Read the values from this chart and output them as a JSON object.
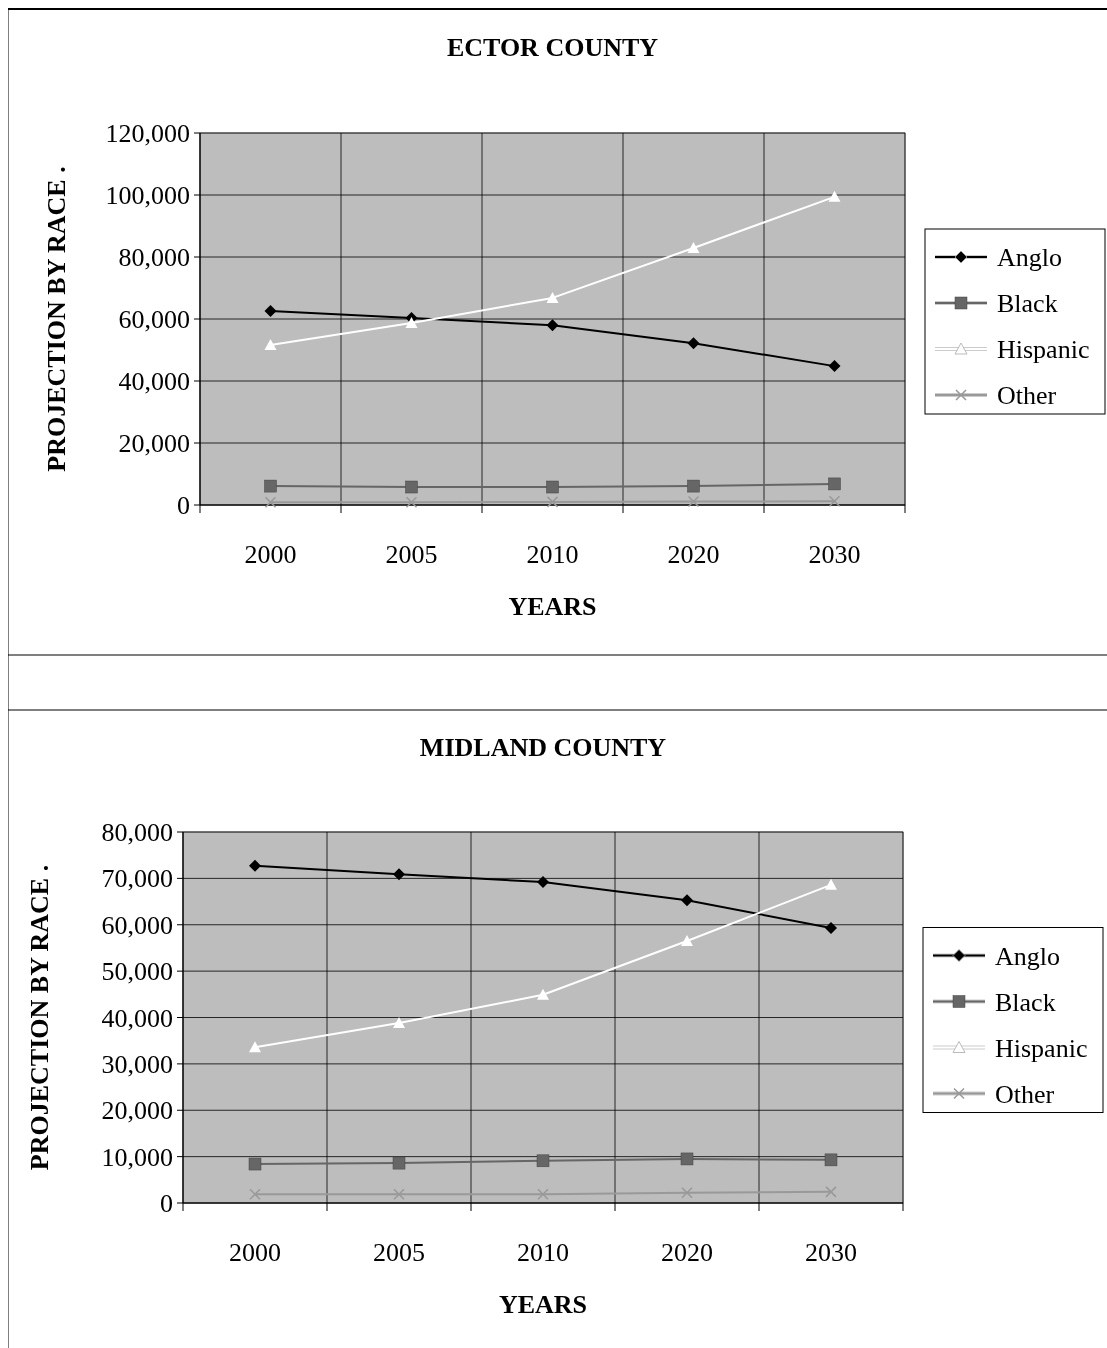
{
  "chart_data": [
    {
      "type": "line",
      "title": "ECTOR COUNTY",
      "xlabel": "YEARS",
      "ylabel": "PROJECTION BY RACE .",
      "categories": [
        "2000",
        "2005",
        "2010",
        "2020",
        "2030"
      ],
      "ylim": [
        0,
        120000
      ],
      "yticks": [
        {
          "value": 0,
          "label": "0"
        },
        {
          "value": 20000,
          "label": "20,000"
        },
        {
          "value": 40000,
          "label": "40,000"
        },
        {
          "value": 60000,
          "label": "60,000"
        },
        {
          "value": 80000,
          "label": "80,000"
        },
        {
          "value": 100000,
          "label": "100,000"
        },
        {
          "value": 120000,
          "label": "120,000"
        }
      ],
      "grid": true,
      "legend": "right",
      "series": [
        {
          "name": "Anglo",
          "color": "#000000",
          "marker": "diamond",
          "values": [
            62600,
            60300,
            58000,
            52200,
            44800
          ]
        },
        {
          "name": "Black",
          "color": "#666666",
          "marker": "square",
          "values": [
            6100,
            5800,
            5800,
            6100,
            6800
          ]
        },
        {
          "name": "Hispanic",
          "color": "#ffffff",
          "marker": "triangle",
          "values": [
            51600,
            58700,
            66800,
            82900,
            99400
          ]
        },
        {
          "name": "Other",
          "color": "#999999",
          "marker": "cross",
          "values": [
            900,
            900,
            1000,
            1100,
            1200
          ]
        }
      ]
    },
    {
      "type": "line",
      "title": "MIDLAND COUNTY",
      "xlabel": "YEARS",
      "ylabel": "PROJECTION BY RACE .",
      "categories": [
        "2000",
        "2005",
        "2010",
        "2020",
        "2030"
      ],
      "ylim": [
        0,
        80000
      ],
      "yticks": [
        {
          "value": 0,
          "label": "0"
        },
        {
          "value": 10000,
          "label": "10,000"
        },
        {
          "value": 20000,
          "label": "20,000"
        },
        {
          "value": 30000,
          "label": "30,000"
        },
        {
          "value": 40000,
          "label": "40,000"
        },
        {
          "value": 50000,
          "label": "50,000"
        },
        {
          "value": 60000,
          "label": "60,000"
        },
        {
          "value": 70000,
          "label": "70,000"
        },
        {
          "value": 80000,
          "label": "80,000"
        }
      ],
      "grid": true,
      "legend": "right",
      "series": [
        {
          "name": "Anglo",
          "color": "#000000",
          "marker": "diamond",
          "values": [
            72700,
            70900,
            69200,
            65300,
            59300
          ]
        },
        {
          "name": "Black",
          "color": "#666666",
          "marker": "square",
          "values": [
            8400,
            8600,
            9100,
            9500,
            9300
          ]
        },
        {
          "name": "Hispanic",
          "color": "#ffffff",
          "marker": "triangle",
          "values": [
            33600,
            38800,
            44900,
            56500,
            68600
          ]
        },
        {
          "name": "Other",
          "color": "#999999",
          "marker": "cross",
          "values": [
            1900,
            1900,
            1900,
            2200,
            2400
          ]
        }
      ]
    }
  ]
}
